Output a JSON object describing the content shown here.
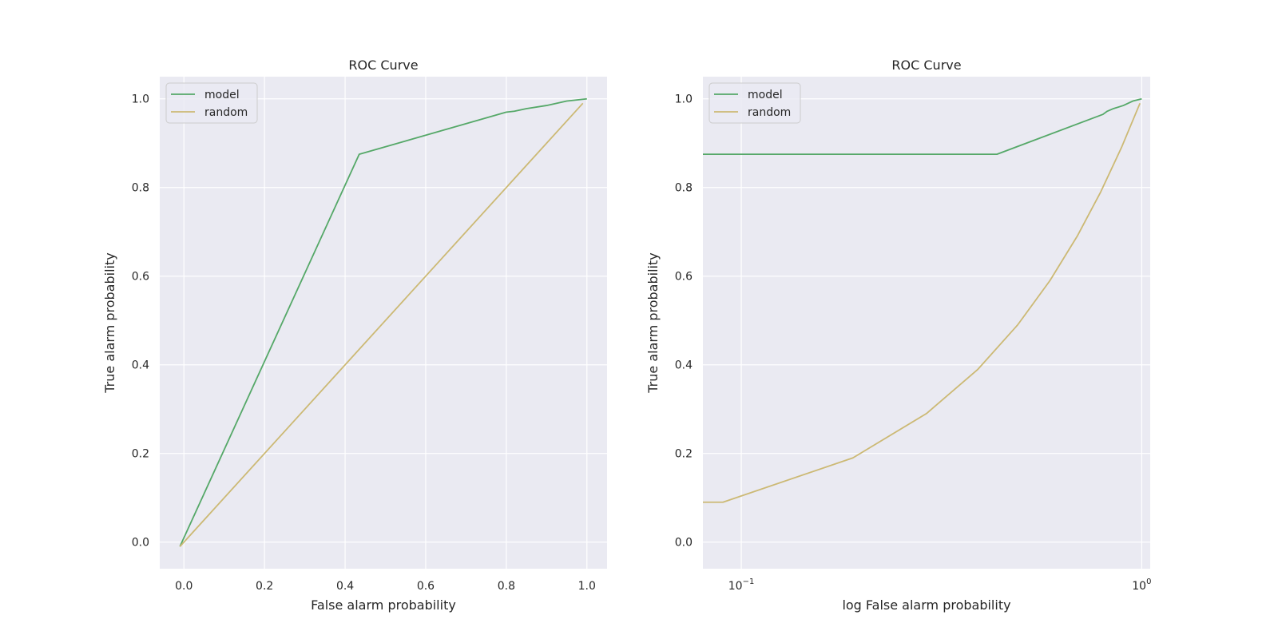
{
  "chart_data": [
    {
      "type": "line",
      "title": "ROC Curve",
      "xlabel": "False alarm probability",
      "ylabel": "True alarm probability",
      "xscale": "linear",
      "xlim": [
        -0.06,
        1.05
      ],
      "ylim": [
        -0.06,
        1.05
      ],
      "xticks": [
        0.0,
        0.2,
        0.4,
        0.6,
        0.8,
        1.0
      ],
      "xtick_labels": [
        "0.0",
        "0.2",
        "0.4",
        "0.6",
        "0.8",
        "1.0"
      ],
      "yticks": [
        0.0,
        0.2,
        0.4,
        0.6,
        0.8,
        1.0
      ],
      "ytick_labels": [
        "0.0",
        "0.2",
        "0.4",
        "0.6",
        "0.8",
        "1.0"
      ],
      "legend_position": "top-left",
      "series": [
        {
          "name": "model",
          "color": "#55a868",
          "x": [
            -0.01,
            0.435,
            0.8,
            0.82,
            0.85,
            0.9,
            0.95,
            1.0
          ],
          "y": [
            -0.01,
            0.875,
            0.97,
            0.972,
            0.978,
            0.985,
            0.995,
            1.0
          ]
        },
        {
          "name": "random",
          "color": "#ccb974",
          "x": [
            -0.01,
            0.99
          ],
          "y": [
            -0.01,
            0.99
          ]
        }
      ]
    },
    {
      "type": "line",
      "title": "ROC Curve",
      "xlabel": "log False alarm probability",
      "ylabel": "True alarm probability",
      "xscale": "log",
      "xlim": [
        0.0802,
        1.05
      ],
      "ylim": [
        -0.06,
        1.05
      ],
      "xticks": [
        0.1,
        1.0
      ],
      "xtick_labels": [
        {
          "base": "10",
          "exp": "−1"
        },
        {
          "base": "10",
          "exp": "0"
        }
      ],
      "yticks": [
        0.0,
        0.2,
        0.4,
        0.6,
        0.8,
        1.0
      ],
      "ytick_labels": [
        "0.0",
        "0.2",
        "0.4",
        "0.6",
        "0.8",
        "1.0"
      ],
      "legend_position": "top-left",
      "series": [
        {
          "name": "model",
          "color": "#55a868",
          "x": [
            0.075,
            0.435,
            0.8,
            0.82,
            0.85,
            0.9,
            0.95,
            1.0
          ],
          "y": [
            0.875,
            0.875,
            0.965,
            0.972,
            0.978,
            0.985,
            0.995,
            1.0
          ]
        },
        {
          "name": "random",
          "color": "#ccb974",
          "x": [
            0.075,
            0.09,
            0.19,
            0.29,
            0.39,
            0.49,
            0.59,
            0.69,
            0.79,
            0.89,
            0.99
          ],
          "y": [
            0.09,
            0.09,
            0.19,
            0.29,
            0.39,
            0.49,
            0.59,
            0.69,
            0.79,
            0.89,
            0.99
          ]
        }
      ]
    }
  ]
}
